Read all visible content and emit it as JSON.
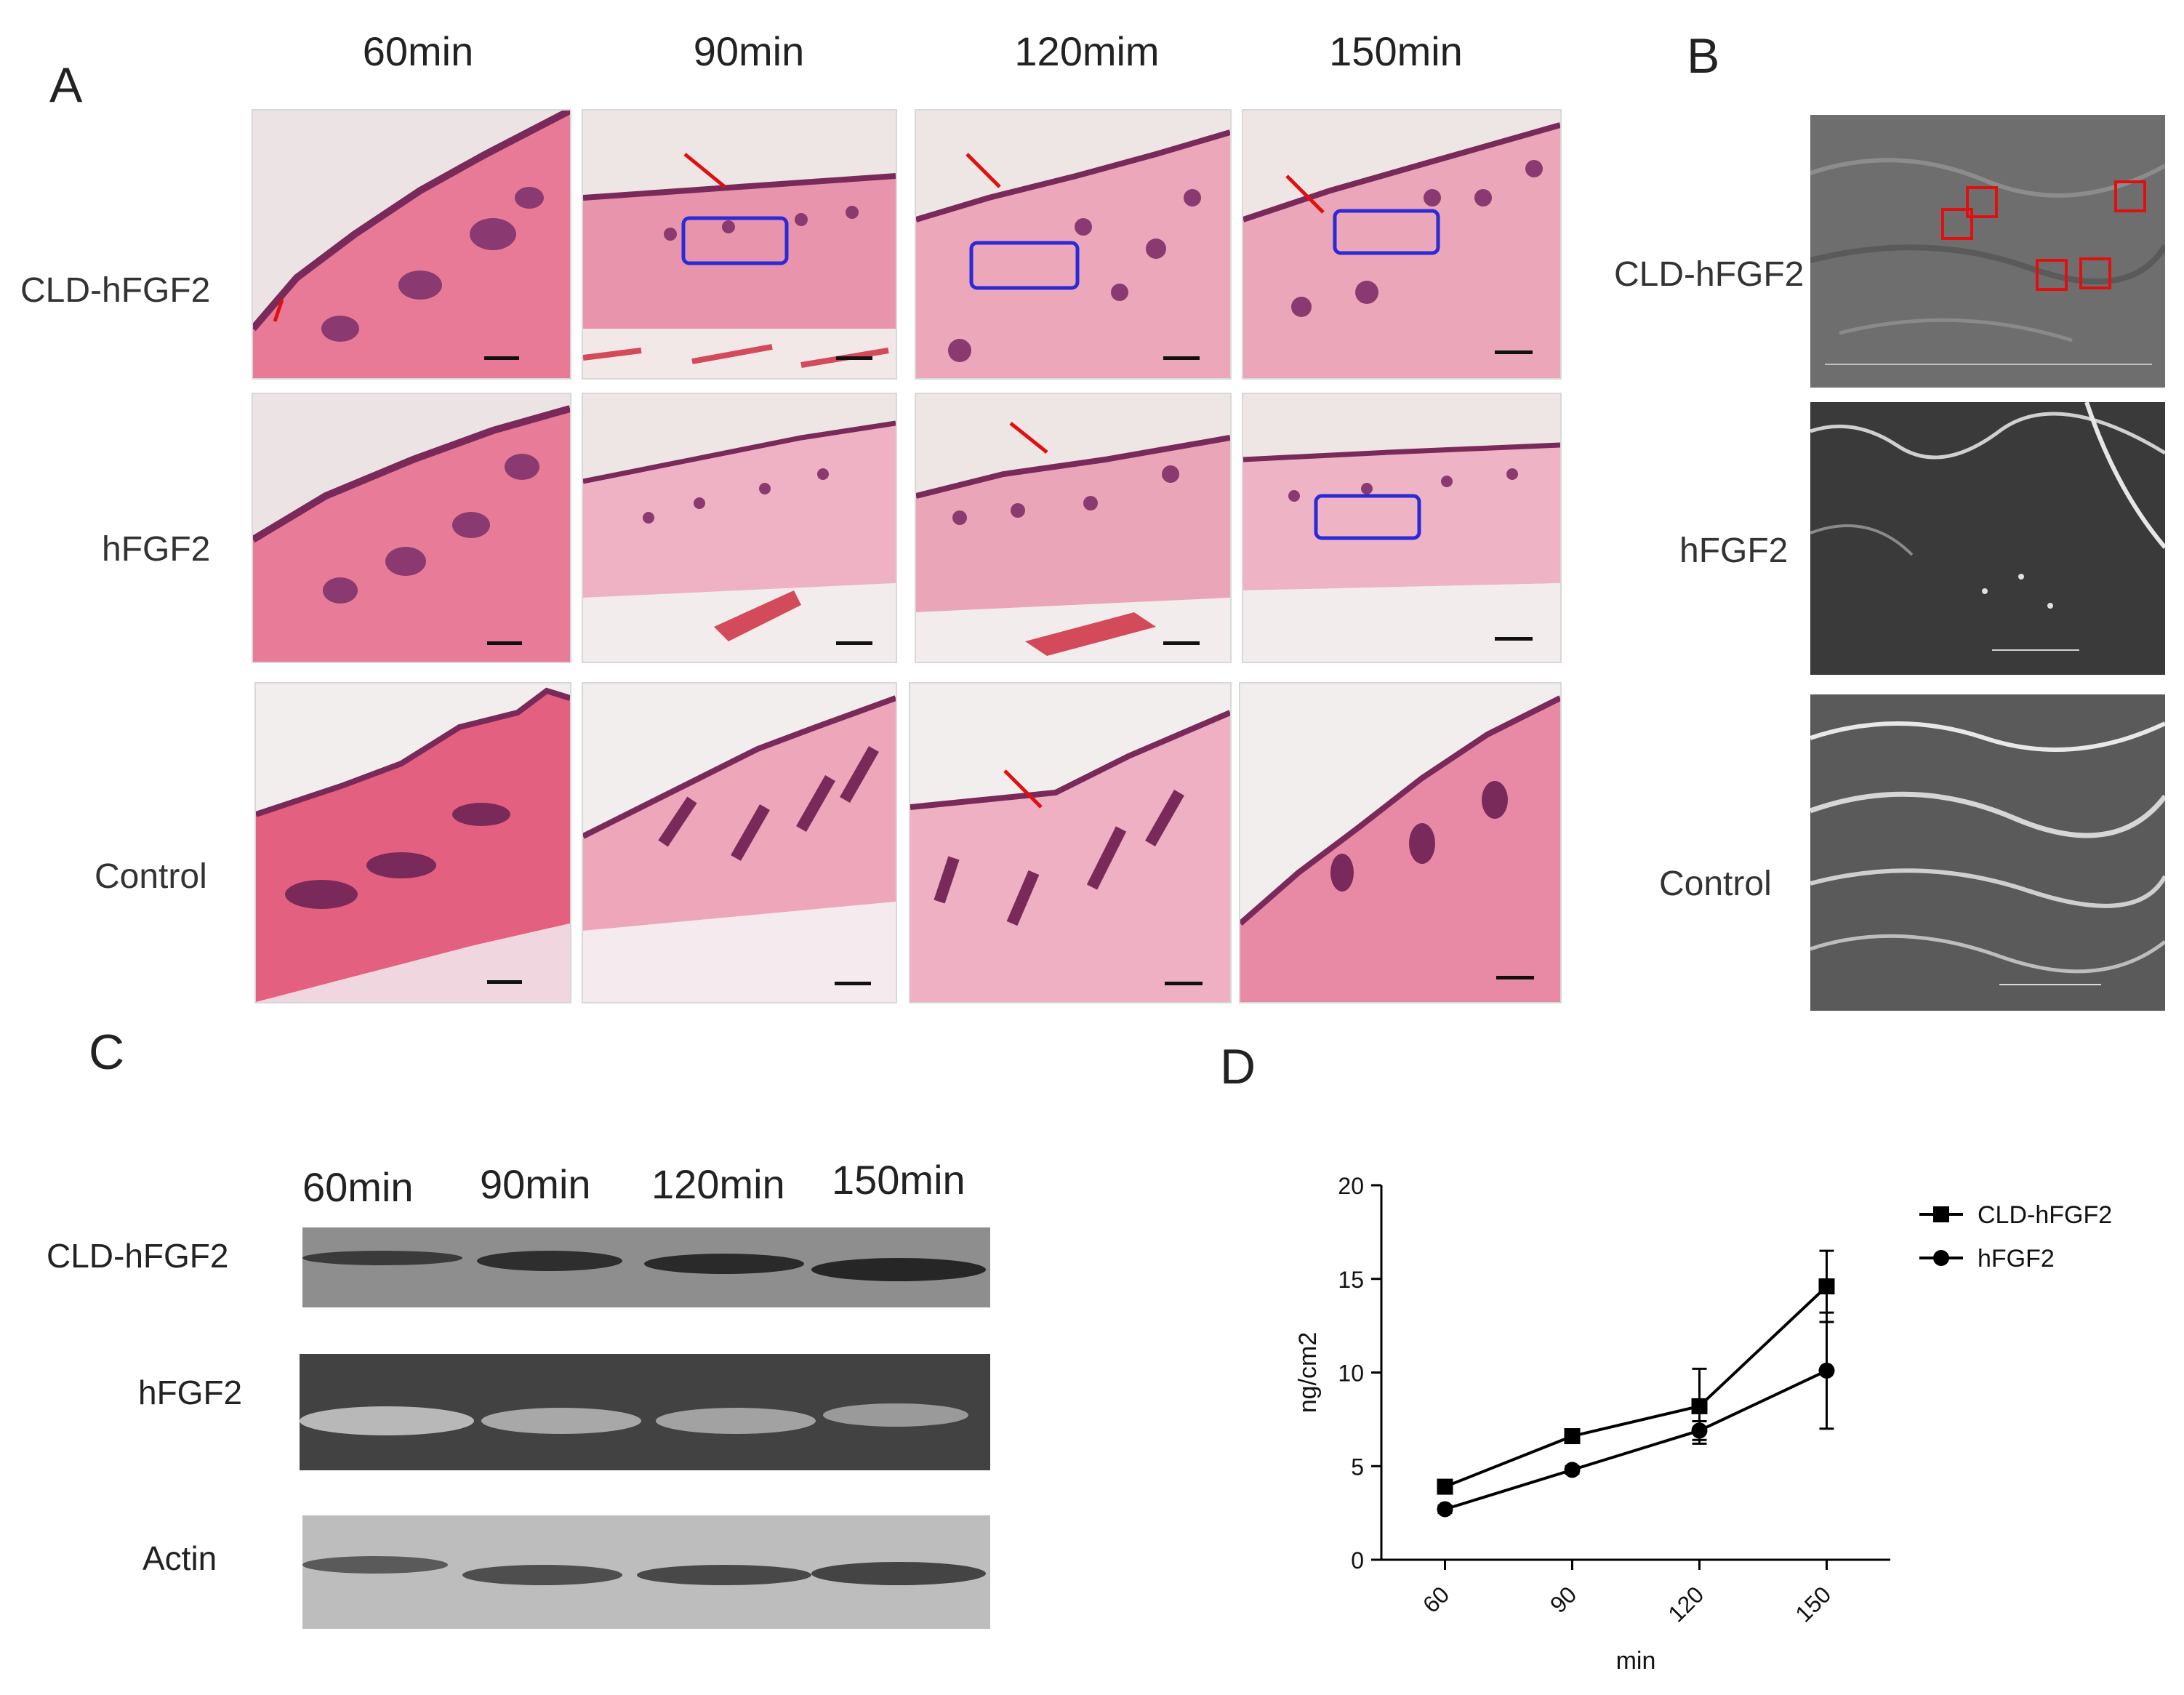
{
  "panelA": {
    "letter": "A",
    "columns": [
      "60min",
      "90min",
      "120mim",
      "150min"
    ],
    "rows": [
      "CLD-hFGF2",
      "hFGF2",
      "Control"
    ]
  },
  "panelB": {
    "letter": "B",
    "rows": [
      "CLD-hFGF2",
      "hFGF2",
      "Control"
    ]
  },
  "panelC": {
    "letter": "C",
    "lanes": [
      "60min",
      "90min",
      "120min",
      "150min"
    ],
    "rows": [
      "CLD-hFGF2",
      "hFGF2",
      "Actin"
    ]
  },
  "panelD": {
    "letter": "D"
  },
  "chart_data": {
    "type": "line",
    "x": [
      60,
      90,
      120,
      150
    ],
    "xlabel": "min",
    "ylabel": "ng/cm2",
    "ylim": [
      0,
      20
    ],
    "yticks": [
      0,
      5,
      10,
      15,
      20
    ],
    "legend_position": "top-right",
    "series": [
      {
        "name": "CLD-hFGF2",
        "marker": "square",
        "values": [
          3.9,
          6.6,
          8.2,
          14.6
        ],
        "errors": [
          0.3,
          0.3,
          2.0,
          1.9
        ]
      },
      {
        "name": "hFGF2",
        "marker": "circle",
        "values": [
          2.7,
          4.8,
          6.9,
          10.1
        ],
        "errors": [
          0.2,
          0.2,
          0.5,
          3.1
        ]
      }
    ]
  }
}
